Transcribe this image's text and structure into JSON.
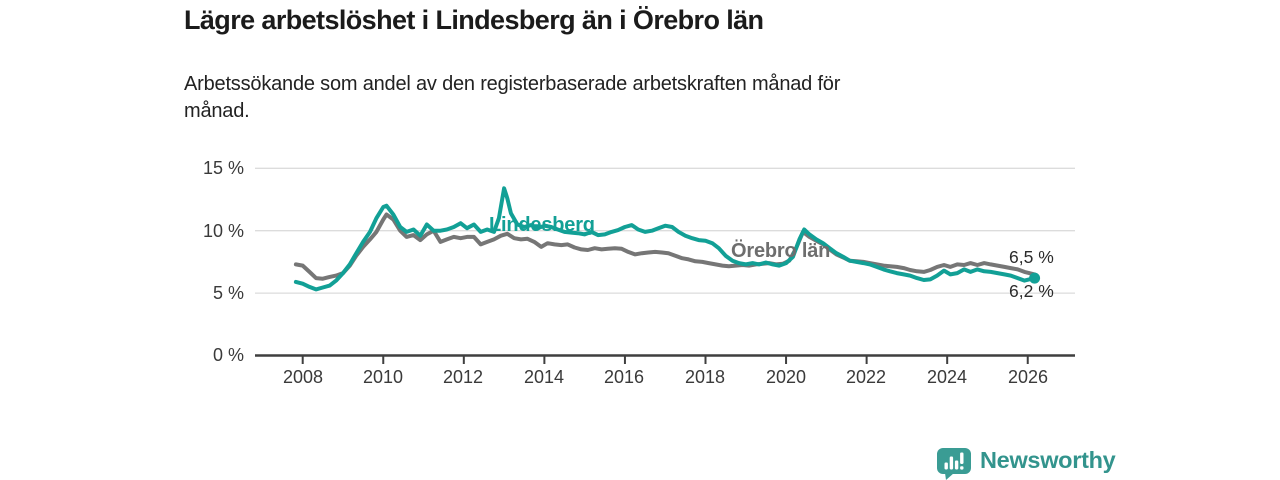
{
  "title": "Lägre arbetslöshet i Lindesberg än i Örebro län",
  "subtitle": "Arbetssökande som andel av den registerbaserade arbetskraften månad för\nmånad.",
  "branding": {
    "logo_text": "Newsworthy",
    "logo_text_color": "#33948d",
    "logo_icon_color": "#3a9c94"
  },
  "chart_data": {
    "type": "line",
    "title": "Lägre arbetslöshet i Lindesberg än i Örebro län",
    "xlabel": "",
    "ylabel": "%",
    "grid": "horizontal",
    "legend_position": "inline-labels",
    "xlim": [
      2007.6,
      2027.2
    ],
    "ylim": [
      0,
      15.6
    ],
    "yticks": [
      {
        "value": 0,
        "label": "0 %"
      },
      {
        "value": 5,
        "label": "5 %"
      },
      {
        "value": 10,
        "label": "10 %"
      },
      {
        "value": 15,
        "label": "15 %"
      }
    ],
    "xticks": [
      {
        "value": 2008,
        "label": "2008"
      },
      {
        "value": 2010,
        "label": "2010"
      },
      {
        "value": 2012,
        "label": "2012"
      },
      {
        "value": 2014,
        "label": "2014"
      },
      {
        "value": 2016,
        "label": "2016"
      },
      {
        "value": 2018,
        "label": "2018"
      },
      {
        "value": 2020,
        "label": "2020"
      },
      {
        "value": 2022,
        "label": "2022"
      },
      {
        "value": 2024,
        "label": "2024"
      },
      {
        "value": 2026,
        "label": "2026"
      }
    ],
    "series": [
      {
        "name": "Örebro län",
        "color": "#767676",
        "label_color": "#6e6e6e",
        "end_label": "6,5 %",
        "end_dot": false,
        "points": [
          [
            2007.83,
            7.3
          ],
          [
            2008.0,
            7.2
          ],
          [
            2008.17,
            6.7
          ],
          [
            2008.33,
            6.2
          ],
          [
            2008.5,
            6.15
          ],
          [
            2008.67,
            6.3
          ],
          [
            2008.83,
            6.4
          ],
          [
            2009.0,
            6.6
          ],
          [
            2009.17,
            7.2
          ],
          [
            2009.33,
            8.0
          ],
          [
            2009.5,
            8.7
          ],
          [
            2009.67,
            9.3
          ],
          [
            2009.83,
            9.9
          ],
          [
            2010.0,
            10.9
          ],
          [
            2010.08,
            11.3
          ],
          [
            2010.25,
            10.9
          ],
          [
            2010.42,
            10.0
          ],
          [
            2010.58,
            9.5
          ],
          [
            2010.75,
            9.65
          ],
          [
            2010.92,
            9.25
          ],
          [
            2011.08,
            9.7
          ],
          [
            2011.25,
            10.0
          ],
          [
            2011.42,
            9.1
          ],
          [
            2011.58,
            9.3
          ],
          [
            2011.75,
            9.5
          ],
          [
            2011.92,
            9.4
          ],
          [
            2012.08,
            9.5
          ],
          [
            2012.25,
            9.5
          ],
          [
            2012.42,
            8.9
          ],
          [
            2012.58,
            9.1
          ],
          [
            2012.75,
            9.3
          ],
          [
            2012.92,
            9.6
          ],
          [
            2013.08,
            9.75
          ],
          [
            2013.25,
            9.4
          ],
          [
            2013.42,
            9.3
          ],
          [
            2013.58,
            9.35
          ],
          [
            2013.75,
            9.1
          ],
          [
            2013.92,
            8.7
          ],
          [
            2014.08,
            9.0
          ],
          [
            2014.25,
            8.9
          ],
          [
            2014.42,
            8.85
          ],
          [
            2014.58,
            8.9
          ],
          [
            2014.75,
            8.65
          ],
          [
            2014.92,
            8.5
          ],
          [
            2015.08,
            8.45
          ],
          [
            2015.25,
            8.6
          ],
          [
            2015.42,
            8.5
          ],
          [
            2015.58,
            8.55
          ],
          [
            2015.75,
            8.6
          ],
          [
            2015.92,
            8.55
          ],
          [
            2016.08,
            8.3
          ],
          [
            2016.25,
            8.1
          ],
          [
            2016.42,
            8.2
          ],
          [
            2016.58,
            8.25
          ],
          [
            2016.75,
            8.3
          ],
          [
            2016.92,
            8.25
          ],
          [
            2017.08,
            8.2
          ],
          [
            2017.25,
            8.0
          ],
          [
            2017.42,
            7.8
          ],
          [
            2017.58,
            7.7
          ],
          [
            2017.75,
            7.55
          ],
          [
            2017.92,
            7.5
          ],
          [
            2018.08,
            7.4
          ],
          [
            2018.25,
            7.3
          ],
          [
            2018.42,
            7.2
          ],
          [
            2018.58,
            7.15
          ],
          [
            2018.75,
            7.2
          ],
          [
            2018.92,
            7.25
          ],
          [
            2019.08,
            7.2
          ],
          [
            2019.25,
            7.3
          ],
          [
            2019.42,
            7.35
          ],
          [
            2019.58,
            7.4
          ],
          [
            2019.75,
            7.3
          ],
          [
            2019.92,
            7.35
          ],
          [
            2020.08,
            7.6
          ],
          [
            2020.25,
            8.6
          ],
          [
            2020.42,
            9.9
          ],
          [
            2020.58,
            9.5
          ],
          [
            2020.75,
            9.2
          ],
          [
            2020.92,
            8.9
          ],
          [
            2021.08,
            8.5
          ],
          [
            2021.25,
            8.1
          ],
          [
            2021.42,
            7.85
          ],
          [
            2021.58,
            7.6
          ],
          [
            2021.75,
            7.55
          ],
          [
            2021.92,
            7.5
          ],
          [
            2022.08,
            7.4
          ],
          [
            2022.25,
            7.3
          ],
          [
            2022.42,
            7.2
          ],
          [
            2022.58,
            7.15
          ],
          [
            2022.75,
            7.1
          ],
          [
            2022.92,
            7.0
          ],
          [
            2023.08,
            6.85
          ],
          [
            2023.25,
            6.75
          ],
          [
            2023.42,
            6.7
          ],
          [
            2023.58,
            6.85
          ],
          [
            2023.75,
            7.1
          ],
          [
            2023.92,
            7.25
          ],
          [
            2024.08,
            7.1
          ],
          [
            2024.25,
            7.3
          ],
          [
            2024.42,
            7.25
          ],
          [
            2024.58,
            7.4
          ],
          [
            2024.75,
            7.25
          ],
          [
            2024.92,
            7.4
          ],
          [
            2025.08,
            7.3
          ],
          [
            2025.25,
            7.2
          ],
          [
            2025.42,
            7.1
          ],
          [
            2025.58,
            7.0
          ],
          [
            2025.75,
            6.9
          ],
          [
            2025.92,
            6.7
          ],
          [
            2026.17,
            6.5
          ]
        ]
      },
      {
        "name": "Lindesberg",
        "color": "#12a096",
        "label_color": "#12a096",
        "end_label": "6,2 %",
        "end_dot": true,
        "points": [
          [
            2007.83,
            5.9
          ],
          [
            2008.0,
            5.75
          ],
          [
            2008.17,
            5.5
          ],
          [
            2008.33,
            5.3
          ],
          [
            2008.5,
            5.45
          ],
          [
            2008.67,
            5.6
          ],
          [
            2008.83,
            6.0
          ],
          [
            2009.0,
            6.6
          ],
          [
            2009.17,
            7.3
          ],
          [
            2009.33,
            8.2
          ],
          [
            2009.5,
            9.1
          ],
          [
            2009.67,
            9.9
          ],
          [
            2009.83,
            11.0
          ],
          [
            2010.0,
            11.9
          ],
          [
            2010.08,
            12.0
          ],
          [
            2010.25,
            11.3
          ],
          [
            2010.42,
            10.3
          ],
          [
            2010.58,
            9.9
          ],
          [
            2010.75,
            10.1
          ],
          [
            2010.92,
            9.6
          ],
          [
            2011.08,
            10.5
          ],
          [
            2011.25,
            10.0
          ],
          [
            2011.42,
            10.0
          ],
          [
            2011.58,
            10.1
          ],
          [
            2011.75,
            10.3
          ],
          [
            2011.92,
            10.6
          ],
          [
            2012.08,
            10.2
          ],
          [
            2012.25,
            10.5
          ],
          [
            2012.42,
            9.9
          ],
          [
            2012.58,
            10.1
          ],
          [
            2012.75,
            9.9
          ],
          [
            2012.87,
            11.0
          ],
          [
            2013.0,
            13.4
          ],
          [
            2013.08,
            12.6
          ],
          [
            2013.17,
            11.4
          ],
          [
            2013.33,
            10.5
          ],
          [
            2013.5,
            10.3
          ],
          [
            2013.67,
            10.45
          ],
          [
            2013.83,
            10.2
          ],
          [
            2014.0,
            10.4
          ],
          [
            2014.17,
            10.3
          ],
          [
            2014.33,
            10.1
          ],
          [
            2014.5,
            9.9
          ],
          [
            2014.67,
            9.85
          ],
          [
            2014.83,
            9.8
          ],
          [
            2015.0,
            9.7
          ],
          [
            2015.17,
            9.9
          ],
          [
            2015.33,
            9.65
          ],
          [
            2015.5,
            9.7
          ],
          [
            2015.67,
            9.9
          ],
          [
            2015.83,
            10.05
          ],
          [
            2016.0,
            10.3
          ],
          [
            2016.17,
            10.45
          ],
          [
            2016.33,
            10.1
          ],
          [
            2016.5,
            9.9
          ],
          [
            2016.67,
            10.0
          ],
          [
            2016.83,
            10.2
          ],
          [
            2017.0,
            10.4
          ],
          [
            2017.17,
            10.3
          ],
          [
            2017.33,
            9.9
          ],
          [
            2017.5,
            9.6
          ],
          [
            2017.67,
            9.4
          ],
          [
            2017.83,
            9.25
          ],
          [
            2018.0,
            9.2
          ],
          [
            2018.17,
            9.0
          ],
          [
            2018.33,
            8.6
          ],
          [
            2018.5,
            8.0
          ],
          [
            2018.67,
            7.6
          ],
          [
            2018.83,
            7.4
          ],
          [
            2019.0,
            7.3
          ],
          [
            2019.17,
            7.4
          ],
          [
            2019.33,
            7.3
          ],
          [
            2019.5,
            7.45
          ],
          [
            2019.67,
            7.3
          ],
          [
            2019.83,
            7.2
          ],
          [
            2020.0,
            7.4
          ],
          [
            2020.17,
            7.9
          ],
          [
            2020.33,
            9.3
          ],
          [
            2020.45,
            10.1
          ],
          [
            2020.58,
            9.7
          ],
          [
            2020.75,
            9.3
          ],
          [
            2020.92,
            9.0
          ],
          [
            2021.08,
            8.6
          ],
          [
            2021.25,
            8.2
          ],
          [
            2021.42,
            7.9
          ],
          [
            2021.58,
            7.6
          ],
          [
            2021.75,
            7.5
          ],
          [
            2021.92,
            7.4
          ],
          [
            2022.08,
            7.3
          ],
          [
            2022.25,
            7.1
          ],
          [
            2022.42,
            6.9
          ],
          [
            2022.58,
            6.75
          ],
          [
            2022.75,
            6.6
          ],
          [
            2022.92,
            6.5
          ],
          [
            2023.08,
            6.4
          ],
          [
            2023.25,
            6.2
          ],
          [
            2023.42,
            6.05
          ],
          [
            2023.58,
            6.1
          ],
          [
            2023.75,
            6.4
          ],
          [
            2023.92,
            6.8
          ],
          [
            2024.08,
            6.5
          ],
          [
            2024.25,
            6.6
          ],
          [
            2024.42,
            6.9
          ],
          [
            2024.58,
            6.7
          ],
          [
            2024.75,
            6.9
          ],
          [
            2024.92,
            6.75
          ],
          [
            2025.08,
            6.7
          ],
          [
            2025.25,
            6.6
          ],
          [
            2025.42,
            6.5
          ],
          [
            2025.58,
            6.4
          ],
          [
            2025.75,
            6.2
          ],
          [
            2025.92,
            6.0
          ],
          [
            2026.17,
            6.2
          ]
        ]
      }
    ],
    "colors": {
      "grid": "#dcdcdc",
      "axis": "#3f3f3f",
      "tick_label": "#3a3a3a"
    }
  }
}
